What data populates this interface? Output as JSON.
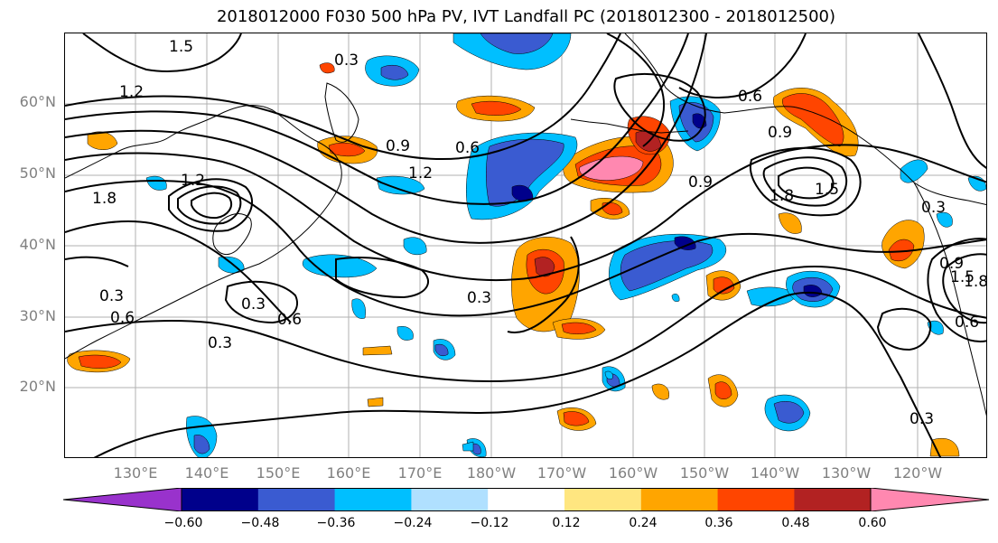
{
  "title": "2018012000 F030 500 hPa PV, IVT Landfall PC (2018012300 - 2018012500)",
  "lat_labels": [
    "60°N",
    "50°N",
    "40°N",
    "30°N",
    "20°N"
  ],
  "lon_labels": [
    "130°E",
    "140°E",
    "150°E",
    "160°E",
    "170°E",
    "180°W",
    "170°W",
    "160°W",
    "150°W",
    "140°W",
    "130°W",
    "120°W"
  ],
  "contour_labels": [
    "0.3",
    "1.8",
    "1.2",
    "1.5",
    "1.2",
    "0.9",
    "0.6",
    "1.2",
    "0.9",
    "0.6",
    "1.8",
    "1.5",
    "0.9",
    "0.3",
    "0.3",
    "0.6",
    "0.3",
    "0.3",
    "0.6",
    "1.8",
    "0.3",
    "0.9",
    "1.5",
    "0.6",
    "0.3"
  ],
  "colorbar": {
    "ticks": [
      "−0.60",
      "−0.48",
      "−0.36",
      "−0.24",
      "−0.12",
      "0.12",
      "0.24",
      "0.36",
      "0.48",
      "0.60"
    ],
    "colors": [
      "#9932cc",
      "#00008b",
      "#3a5bd1",
      "#00bfff",
      "#b0e0ff",
      "#ffffff",
      "#ffe680",
      "#ffa500",
      "#ff4500",
      "#b22222",
      "#ff88b0"
    ]
  },
  "extent": {
    "lon_min": 120,
    "lon_max": 250,
    "lat_min": 10,
    "lat_max": 70
  }
}
